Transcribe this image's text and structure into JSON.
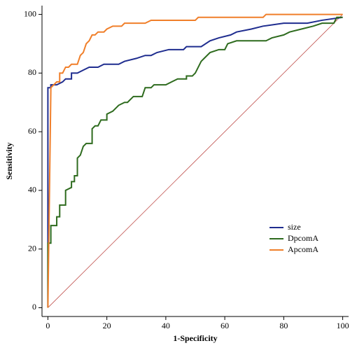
{
  "chart_data": {
    "type": "roc",
    "xlabel": "1-Specificity",
    "ylabel": "Sensitivity",
    "xlim": [
      -2,
      102
    ],
    "ylim": [
      -3,
      103
    ],
    "xticks": [
      0,
      20,
      40,
      60,
      80,
      100
    ],
    "yticks": [
      0,
      20,
      40,
      60,
      80,
      100
    ],
    "legend": "lower right",
    "reference_line": {
      "color": "#c0504d",
      "x": [
        0,
        100
      ],
      "values": [
        0,
        100
      ]
    },
    "series": [
      {
        "name": "size",
        "color": "#1f2d8f",
        "x": [
          0,
          0,
          1,
          1,
          3,
          5,
          6,
          8,
          8,
          10,
          12,
          14,
          17,
          19,
          24,
          26,
          30,
          33,
          35,
          37,
          41,
          46,
          47,
          52,
          55,
          58,
          62,
          64,
          69,
          73,
          80,
          88,
          93,
          100
        ],
        "values": [
          0,
          75,
          75,
          76,
          76,
          77,
          78,
          78,
          80,
          80,
          81,
          82,
          82,
          83,
          83,
          84,
          85,
          86,
          86,
          87,
          88,
          88,
          89,
          89,
          91,
          92,
          93,
          94,
          95,
          96,
          97,
          97,
          98,
          99
        ]
      },
      {
        "name": "DpcomA",
        "color": "#2e6b1e",
        "x": [
          0,
          0,
          1,
          1,
          3,
          3,
          4,
          4,
          6,
          6,
          8,
          8,
          9,
          9,
          10,
          10,
          11,
          12,
          13,
          15,
          15,
          16,
          17,
          18,
          20,
          20,
          22,
          24,
          26,
          27,
          29,
          32,
          33,
          35,
          36,
          40,
          42,
          44,
          47,
          47,
          49,
          50,
          52,
          53,
          55,
          58,
          60,
          61,
          64,
          74,
          76,
          80,
          82,
          86,
          90,
          93,
          97,
          98,
          100
        ],
        "values": [
          0,
          22,
          22,
          28,
          28,
          31,
          31,
          35,
          35,
          40,
          41,
          43,
          43,
          45,
          45,
          51,
          52,
          55,
          56,
          56,
          61,
          62,
          62,
          64,
          64,
          66,
          67,
          69,
          70,
          70,
          72,
          72,
          75,
          75,
          76,
          76,
          77,
          78,
          78,
          79,
          79,
          80,
          84,
          85,
          87,
          88,
          88,
          90,
          91,
          91,
          92,
          93,
          94,
          95,
          96,
          97,
          97,
          99,
          99
        ]
      },
      {
        "name": "ApcomA",
        "color": "#f07f2a",
        "x": [
          0,
          1,
          1,
          2,
          3,
          4,
          4,
          5,
          6,
          7,
          8,
          10,
          11,
          12,
          13,
          14,
          15,
          16,
          17,
          19,
          20,
          22,
          25,
          26,
          33,
          35,
          50,
          51,
          73,
          74,
          100
        ],
        "values": [
          0,
          74,
          75,
          76,
          77,
          77,
          80,
          80,
          82,
          82,
          83,
          83,
          86,
          87,
          90,
          91,
          93,
          93,
          94,
          94,
          95,
          96,
          96,
          97,
          97,
          98,
          98,
          99,
          99,
          100,
          100
        ]
      }
    ]
  }
}
